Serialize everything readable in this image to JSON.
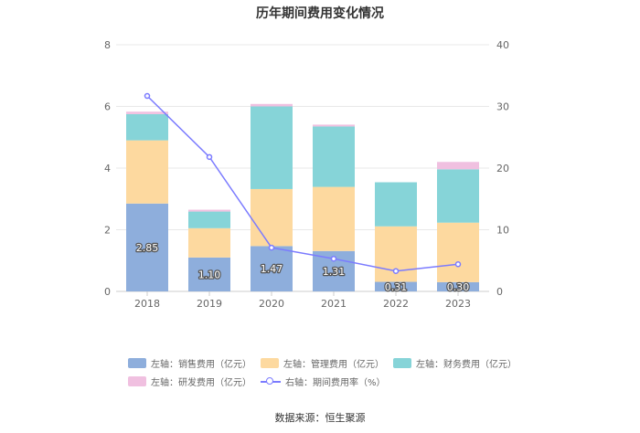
{
  "chart_data": {
    "type": "bar",
    "title": "历年期间费用变化情况",
    "categories": [
      "2018",
      "2019",
      "2020",
      "2021",
      "2022",
      "2023"
    ],
    "series": [
      {
        "name": "左轴：销售费用（亿元）",
        "axis": "left",
        "type": "stacked-bar",
        "color": "#8eaedc",
        "values": [
          2.85,
          1.1,
          1.47,
          1.31,
          0.31,
          0.3
        ],
        "labels": [
          "2.85",
          "1.10",
          "1.47",
          "1.31",
          "0.31",
          "0.30"
        ]
      },
      {
        "name": "左轴：管理费用（亿元）",
        "axis": "left",
        "type": "stacked-bar",
        "color": "#fdd99f",
        "values": [
          2.05,
          0.95,
          1.85,
          2.08,
          1.8,
          1.93
        ]
      },
      {
        "name": "左轴：财务费用（亿元）",
        "axis": "left",
        "type": "stacked-bar",
        "color": "#86d4d8",
        "values": [
          0.85,
          0.54,
          2.68,
          1.96,
          1.43,
          1.73
        ]
      },
      {
        "name": "左轴：研发费用（亿元）",
        "axis": "left",
        "type": "stacked-bar",
        "color": "#f0c0e0",
        "values": [
          0.08,
          0.06,
          0.08,
          0.06,
          0.0,
          0.24
        ]
      },
      {
        "name": "右轴：期间费用率（%）",
        "axis": "right",
        "type": "line",
        "color": "#7b7bff",
        "values": [
          31.7,
          21.8,
          7.1,
          5.3,
          3.3,
          4.4
        ]
      }
    ],
    "y_left": {
      "min": 0,
      "max": 8,
      "ticks": [
        "0",
        "2",
        "4",
        "6",
        "8"
      ]
    },
    "y_right": {
      "min": 0,
      "max": 40,
      "ticks": [
        "0",
        "10",
        "20",
        "30",
        "40"
      ]
    },
    "grid": true,
    "legend_position": "bottom"
  },
  "source": "数据来源：恒生聚源"
}
